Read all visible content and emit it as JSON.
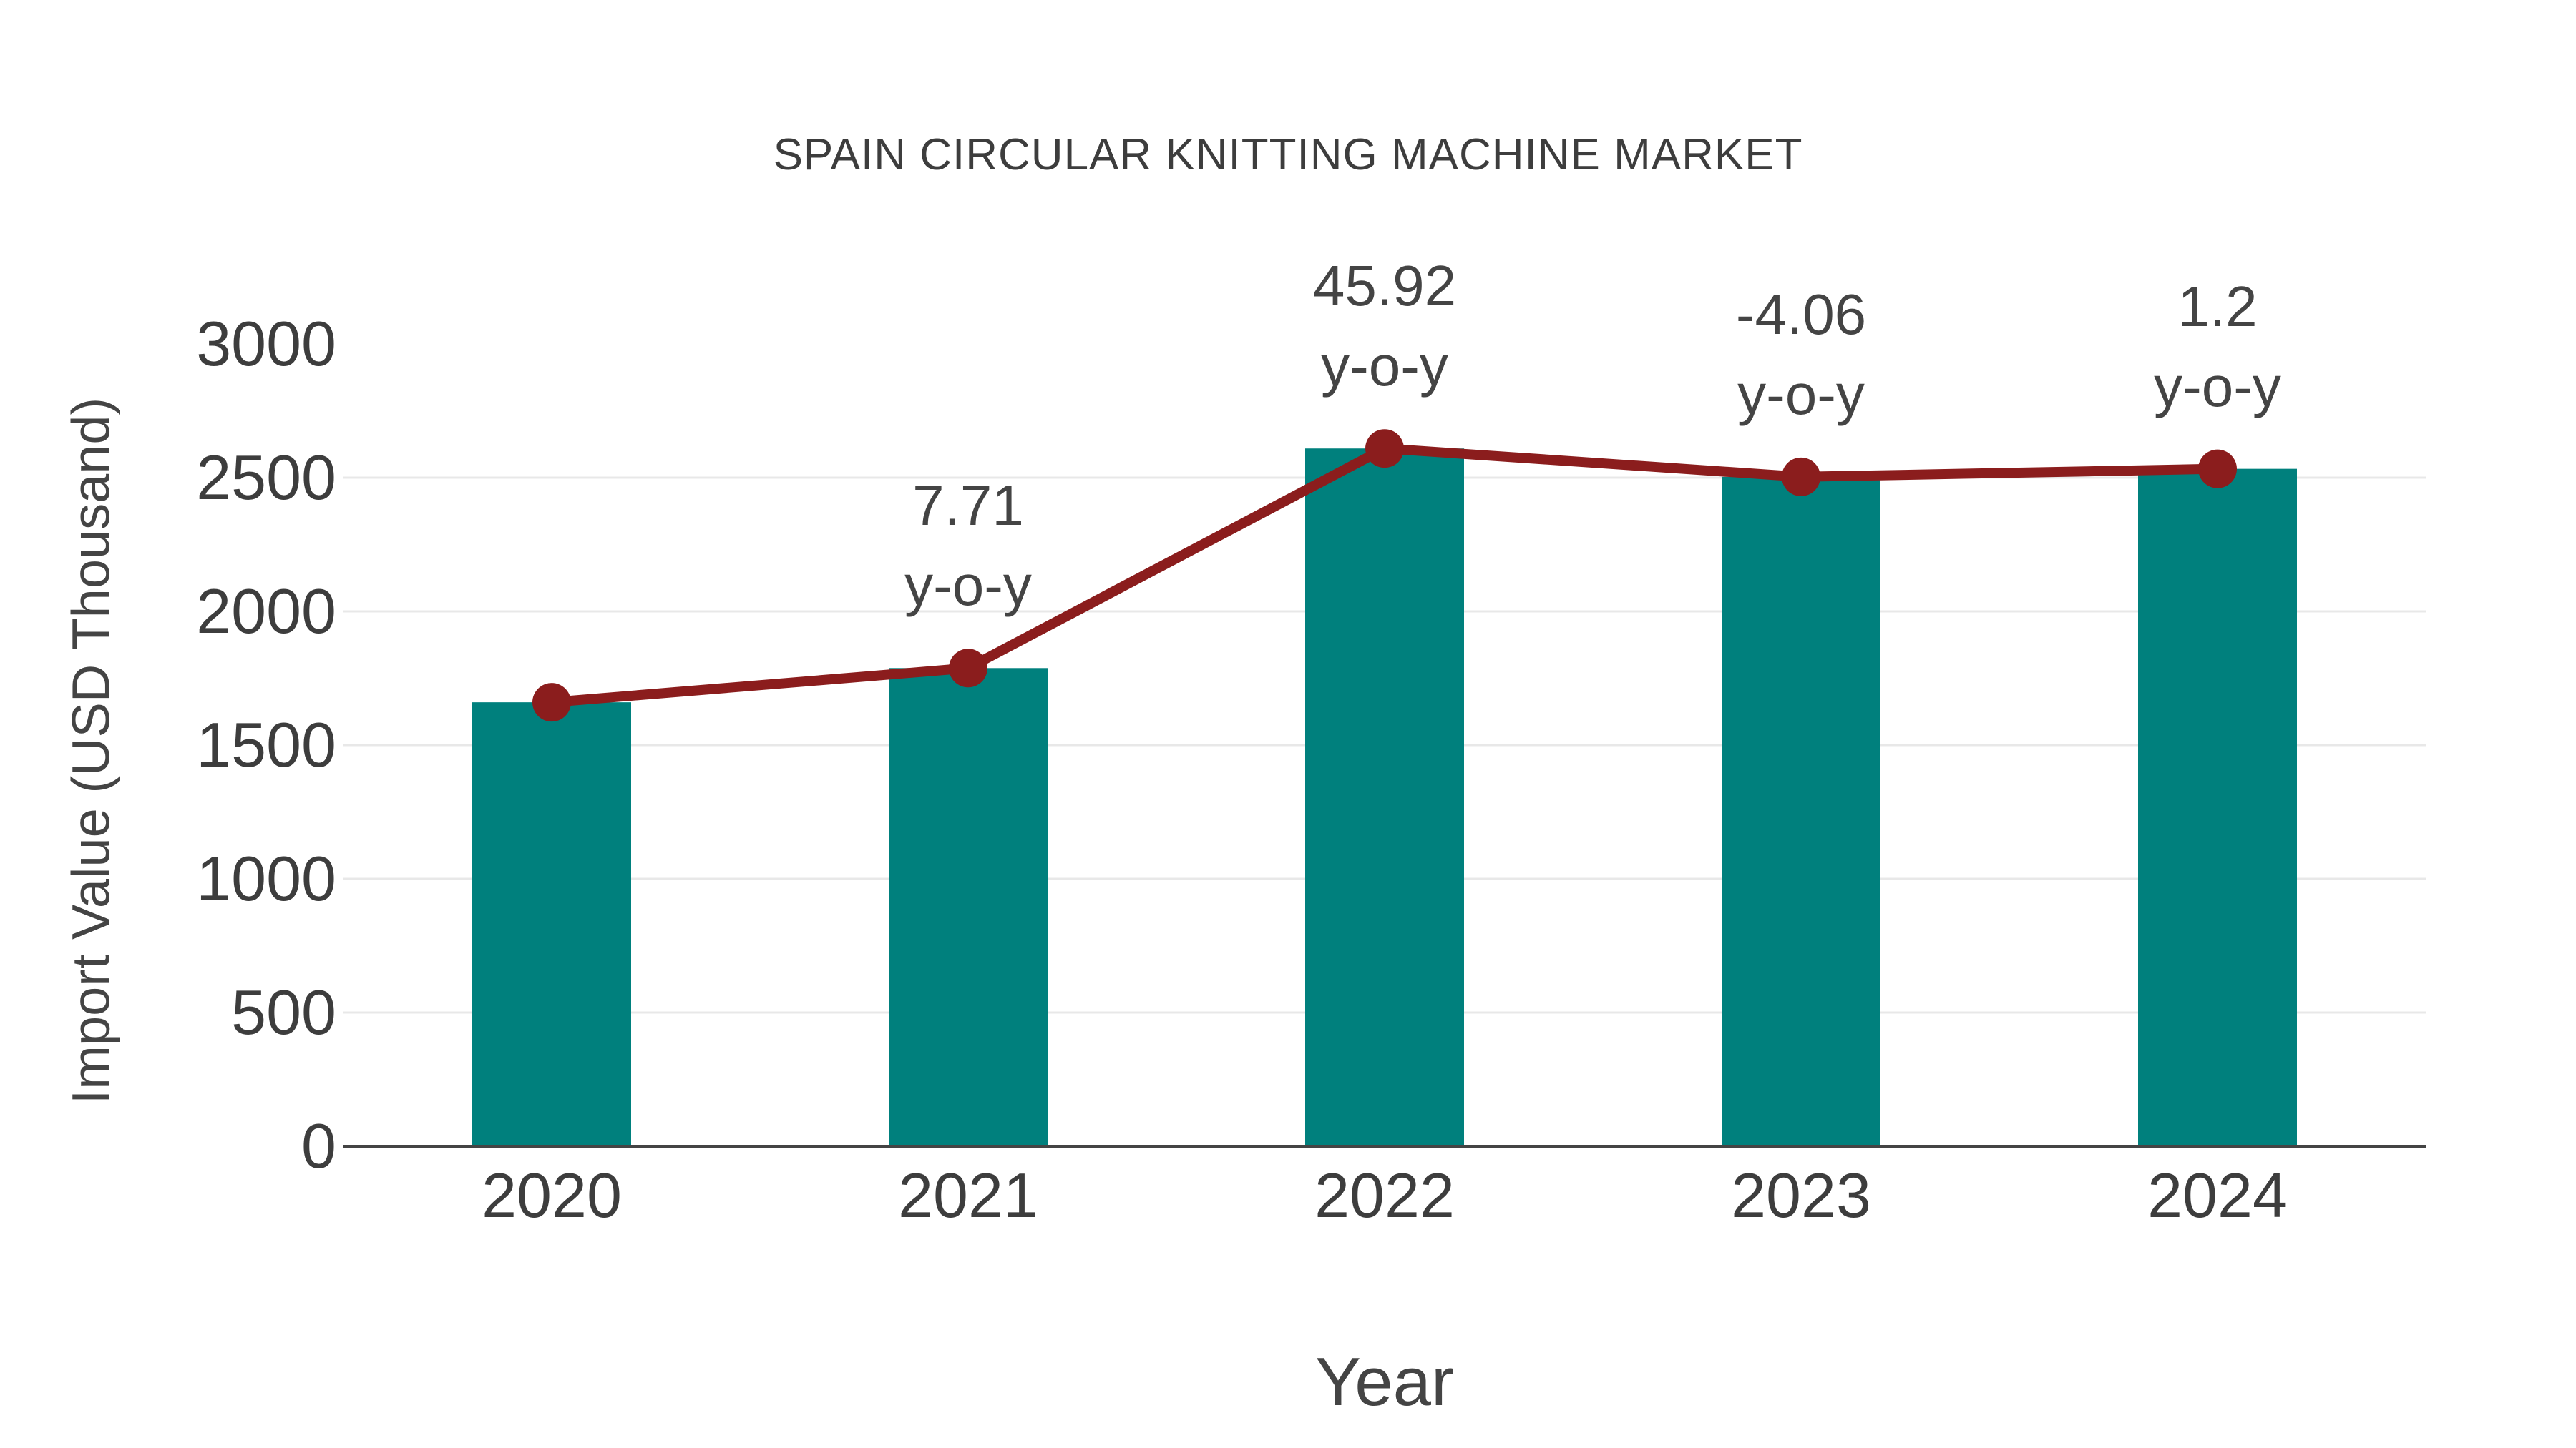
{
  "chart_data": {
    "type": "bar",
    "combo": "bar with overlay line+markers drawn at bar values",
    "title": "SPAIN CIRCULAR KNITTING MACHINE MARKET",
    "xlabel": "Year",
    "ylabel": "Import Value (USD Thousand)",
    "categories": [
      "2020",
      "2021",
      "2022",
      "2023",
      "2024"
    ],
    "series": [
      {
        "name": "Import Value (USD Thousand)",
        "type": "bar",
        "color": "#00807D",
        "values": [
          1660,
          1788,
          2609,
          2503,
          2533
        ]
      },
      {
        "name": "y-o-y change (%)",
        "type": "line",
        "color": "#8B1D1D",
        "values_pct": [
          null,
          7.71,
          45.92,
          -4.06,
          1.2
        ]
      }
    ],
    "annotations": [
      {
        "category": "2021",
        "line1": "7.71",
        "line2": "y-o-y"
      },
      {
        "category": "2022",
        "line1": "45.92",
        "line2": "y-o-y"
      },
      {
        "category": "2023",
        "line1": "-4.06",
        "line2": "y-o-y"
      },
      {
        "category": "2024",
        "line1": "1.2",
        "line2": "y-o-y"
      }
    ],
    "yticks": [
      0,
      500,
      1000,
      1500,
      2000,
      2500,
      3000
    ],
    "ylim": [
      0,
      3000
    ],
    "legend": {
      "visible": false
    },
    "grid": {
      "horizontal": true,
      "gridline_at_max_tick": false,
      "gridline_at_zero": "dark axis line"
    }
  },
  "colors": {
    "background": "#FFFFFF",
    "bar": "#00807D",
    "line": "#8B1D1D",
    "marker": "#8B1D1D",
    "gridline": "#E8E8E8",
    "axis_line": "#444444",
    "tick_text": "#3D3D3D",
    "axis_title_text": "#444444",
    "annotation_text": "#444444",
    "title_text": "#3D3D3D"
  }
}
